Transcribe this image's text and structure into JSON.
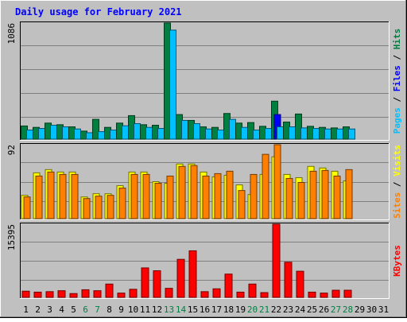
{
  "chart_data": {
    "type": "bar",
    "title": "Daily usage for February 2021",
    "categories": [
      "1",
      "2",
      "3",
      "4",
      "5",
      "6",
      "7",
      "8",
      "9",
      "10",
      "11",
      "12",
      "13",
      "14",
      "15",
      "16",
      "17",
      "18",
      "19",
      "20",
      "21",
      "22",
      "23",
      "24",
      "25",
      "26",
      "27",
      "28",
      "29",
      "30",
      "31"
    ],
    "weekend_days": [
      "6",
      "7",
      "13",
      "14",
      "20",
      "21",
      "27",
      "28"
    ],
    "panels": [
      {
        "id": "top",
        "max_label": "1086",
        "ylim": [
          0,
          1086
        ],
        "side_labels": [
          "Pages",
          "Files",
          "Hits"
        ],
        "series": [
          {
            "name": "Hits",
            "color": "#008040",
            "values": [
              123,
              110,
              150,
              135,
              115,
              75,
              185,
              110,
              150,
              220,
              135,
              130,
              1086,
              230,
              175,
              115,
              110,
              240,
              150,
              155,
              120,
              355,
              160,
              235,
              120,
              110,
              105,
              115,
              0,
              0,
              0
            ]
          },
          {
            "name": "Files",
            "color": "#0000ff",
            "values": [
              0,
              0,
              0,
              0,
              0,
              0,
              0,
              0,
              0,
              0,
              0,
              0,
              0,
              0,
              0,
              0,
              0,
              0,
              0,
              0,
              0,
              230,
              0,
              0,
              0,
              0,
              0,
              0,
              0,
              0,
              0
            ]
          },
          {
            "name": "Pages",
            "color": "#00c0ff",
            "values": [
              85,
              100,
              130,
              115,
              95,
              60,
              70,
              85,
              125,
              145,
              110,
              100,
              1020,
              175,
              145,
              95,
              85,
              185,
              110,
              85,
              100,
              115,
              115,
              105,
              100,
              95,
              95,
              95,
              0,
              0,
              0
            ]
          }
        ]
      },
      {
        "id": "middle",
        "max_label": "92",
        "ylim": [
          0,
          92
        ],
        "side_labels": [
          "Sites",
          "Visits"
        ],
        "series": [
          {
            "name": "Visits",
            "color": "#ffff00",
            "values": [
              29,
              57,
              61,
              58,
              58,
              27,
              31,
              31,
              41,
              58,
              58,
              46,
              44,
              68,
              68,
              58,
              52,
              54,
              42,
              30,
              55,
              77,
              55,
              51,
              65,
              63,
              59,
              47,
              0,
              0,
              0
            ]
          },
          {
            "name": "Sites",
            "color": "#ff8000",
            "values": [
              27,
              53,
              58,
              55,
              55,
              25,
              28,
              29,
              38,
              55,
              55,
              44,
              53,
              65,
              66,
              53,
              56,
              59,
              35,
              55,
              80,
              92,
              50,
              45,
              59,
              60,
              53,
              61,
              0,
              0,
              0
            ]
          }
        ]
      },
      {
        "id": "bottom",
        "max_label": "15395",
        "ylim": [
          0,
          15395
        ],
        "side_labels": [
          "KBytes"
        ],
        "series": [
          {
            "name": "KBytes",
            "color": "#ff0000",
            "values": [
              1300,
              1100,
              1200,
              1400,
              800,
              1600,
              1400,
              2800,
              900,
              1700,
              6200,
              5600,
              1900,
              8000,
              9800,
              1200,
              1800,
              4900,
              1100,
              2800,
              1000,
              15395,
              7400,
              5500,
              1100,
              900,
              1500,
              1500,
              0,
              0,
              0
            ]
          }
        ]
      }
    ],
    "grid": true
  }
}
